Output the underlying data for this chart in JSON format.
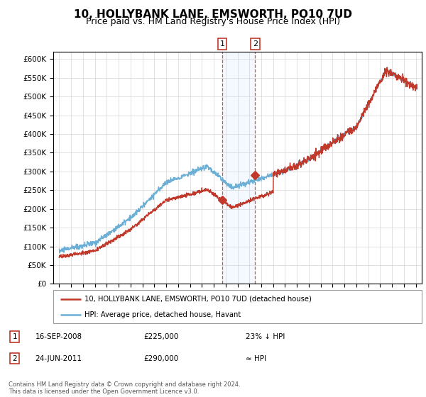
{
  "title": "10, HOLLYBANK LANE, EMSWORTH, PO10 7UD",
  "subtitle": "Price paid vs. HM Land Registry's House Price Index (HPI)",
  "ylim": [
    0,
    620000
  ],
  "yticks": [
    0,
    50000,
    100000,
    150000,
    200000,
    250000,
    300000,
    350000,
    400000,
    450000,
    500000,
    550000,
    600000
  ],
  "xlim_start": 1994.5,
  "xlim_end": 2025.5,
  "event1_x": 2008.71,
  "event2_x": 2011.48,
  "event1_price": 225000,
  "event2_price": 290000,
  "hpi_color": "#6baed6",
  "price_color": "#c0392b",
  "shade_color": "#ddeeff",
  "vline_color": "#c0392b",
  "legend_line1": "10, HOLLYBANK LANE, EMSWORTH, PO10 7UD (detached house)",
  "legend_line2": "HPI: Average price, detached house, Havant",
  "ann1_date": "16-SEP-2008",
  "ann1_price": "£225,000",
  "ann1_note": "23% ↓ HPI",
  "ann2_date": "24-JUN-2011",
  "ann2_price": "£290,000",
  "ann2_note": "≈ HPI",
  "footer": "Contains HM Land Registry data © Crown copyright and database right 2024.\nThis data is licensed under the Open Government Licence v3.0.",
  "title_fontsize": 11,
  "subtitle_fontsize": 9
}
